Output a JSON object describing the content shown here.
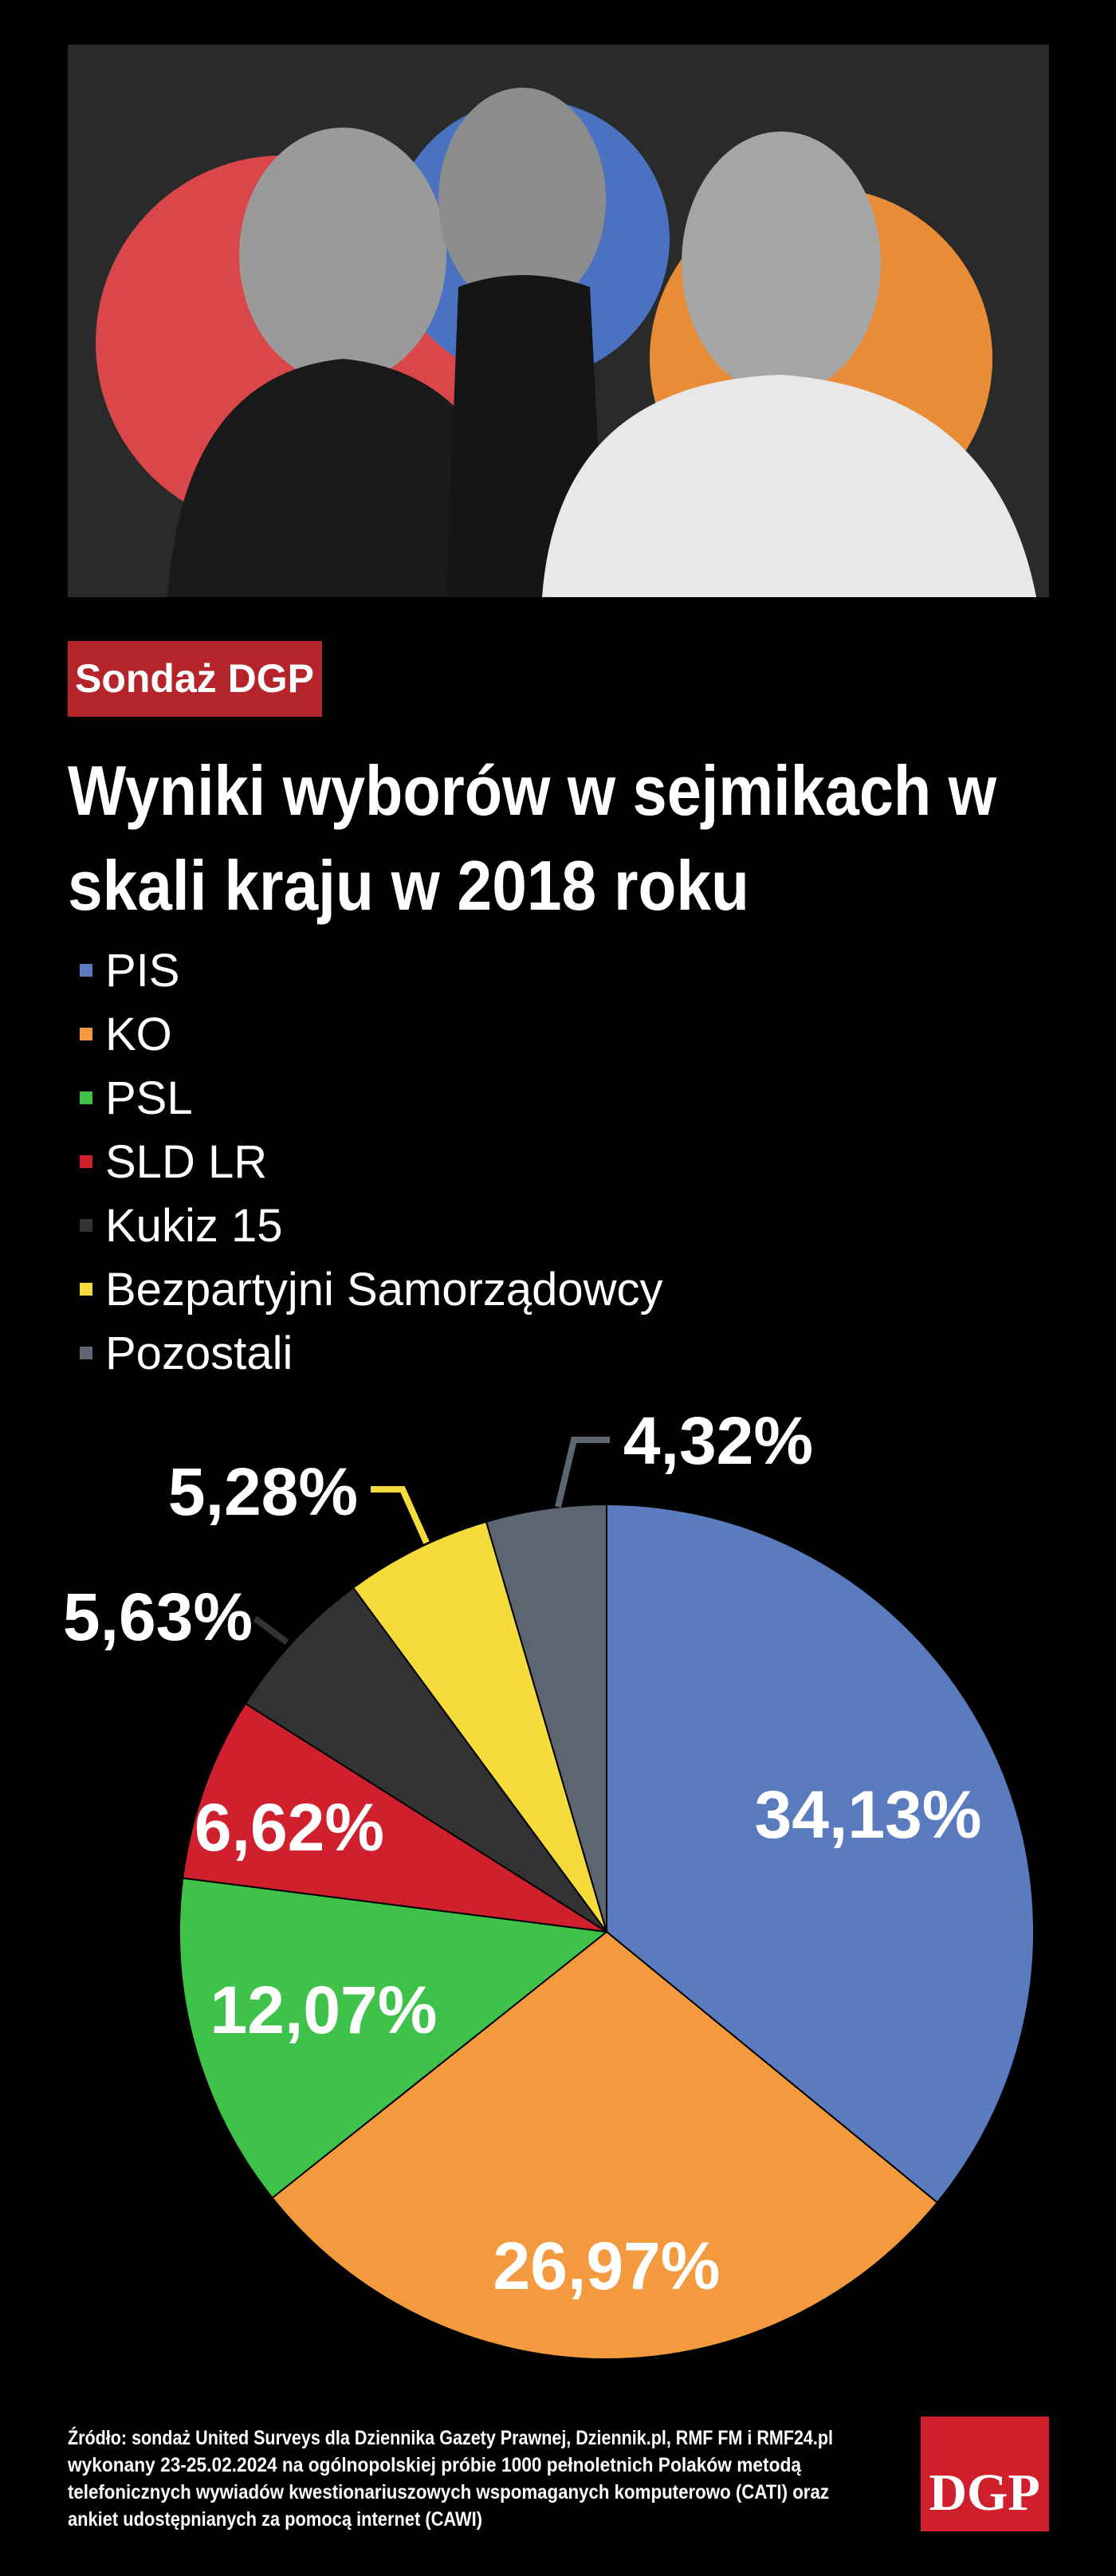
{
  "badge": "Sondaż DGP",
  "chart_data": {
    "type": "pie",
    "title_lines": [
      "Wyniki wyborów w sejmikach w",
      "skali kraju w 2018 roku"
    ],
    "categories": [
      "PIS",
      "KO",
      "PSL",
      "SLD LR",
      "Kukiz 15",
      "Bezpartyjni Samorządowcy",
      "Pozostali"
    ],
    "values": [
      34.13,
      26.97,
      12.07,
      6.62,
      5.63,
      5.28,
      4.32
    ],
    "value_labels": [
      "34,13%",
      "26,97%",
      "12,07%",
      "6,62%",
      "5,63%",
      "5,28%",
      "4,32%"
    ],
    "colors": [
      "#5b7bbf",
      "#f39a3e",
      "#3fc24a",
      "#d0202e",
      "#333333",
      "#f5dc3a",
      "#5d6670"
    ],
    "legend": "top-left"
  },
  "source_lines": [
    "Źródło: sondaż United Surveys dla Dziennika Gazety Prawnej, Dziennik.pl, RMF FM i RMF24.pl",
    "wykonany 23-25.02.2024 na ogólnopolskiej próbie 1000 pełnoletnich Polaków metodą",
    "telefonicznych wywiadów kwestionariuszowych wspomaganych komputerowo (CATI) oraz",
    "ankiet udostępnianych za pomocą internet (CAWI)"
  ],
  "logo": "DGP"
}
